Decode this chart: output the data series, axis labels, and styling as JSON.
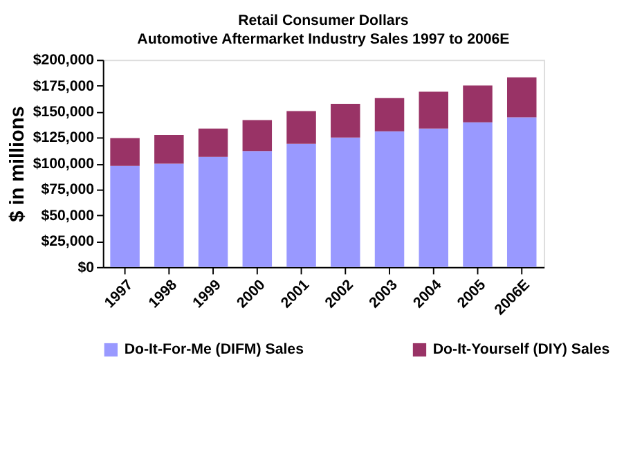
{
  "chart_data": {
    "type": "bar",
    "title": "Retail Consumer Dollars",
    "subtitle": "Automotive Aftermarket Industry Sales 1997 to 2006E",
    "ylabel": "$ in millions",
    "categories": [
      "1997",
      "1998",
      "1999",
      "2000",
      "2001",
      "2002",
      "2003",
      "2004",
      "2005",
      "2006E"
    ],
    "stacked": true,
    "series": [
      {
        "name": "Do-It-For-Me (DIFM) Sales",
        "color": "#9999ff",
        "values": [
          97600,
          99800,
          106300,
          111900,
          118900,
          124900,
          131000,
          133600,
          139700,
          144500
        ]
      },
      {
        "name": "Do-It-Yourself (DIY) Sales",
        "color": "#993366",
        "values": [
          26900,
          27700,
          27300,
          30000,
          31600,
          32600,
          32100,
          35600,
          35600,
          38600
        ]
      }
    ],
    "ylim": [
      0,
      200000
    ],
    "yticks": [
      {
        "value": 0,
        "label": "$0"
      },
      {
        "value": 25000,
        "label": "$25,000"
      },
      {
        "value": 50000,
        "label": "$50,000"
      },
      {
        "value": 75000,
        "label": "$75,000"
      },
      {
        "value": 100000,
        "label": "$100,000"
      },
      {
        "value": 125000,
        "label": "$125,000"
      },
      {
        "value": 150000,
        "label": "$150,000"
      },
      {
        "value": 175000,
        "label": "$175,000"
      },
      {
        "value": 200000,
        "label": "$200,000"
      }
    ],
    "grid": false,
    "legend": "bottom"
  }
}
